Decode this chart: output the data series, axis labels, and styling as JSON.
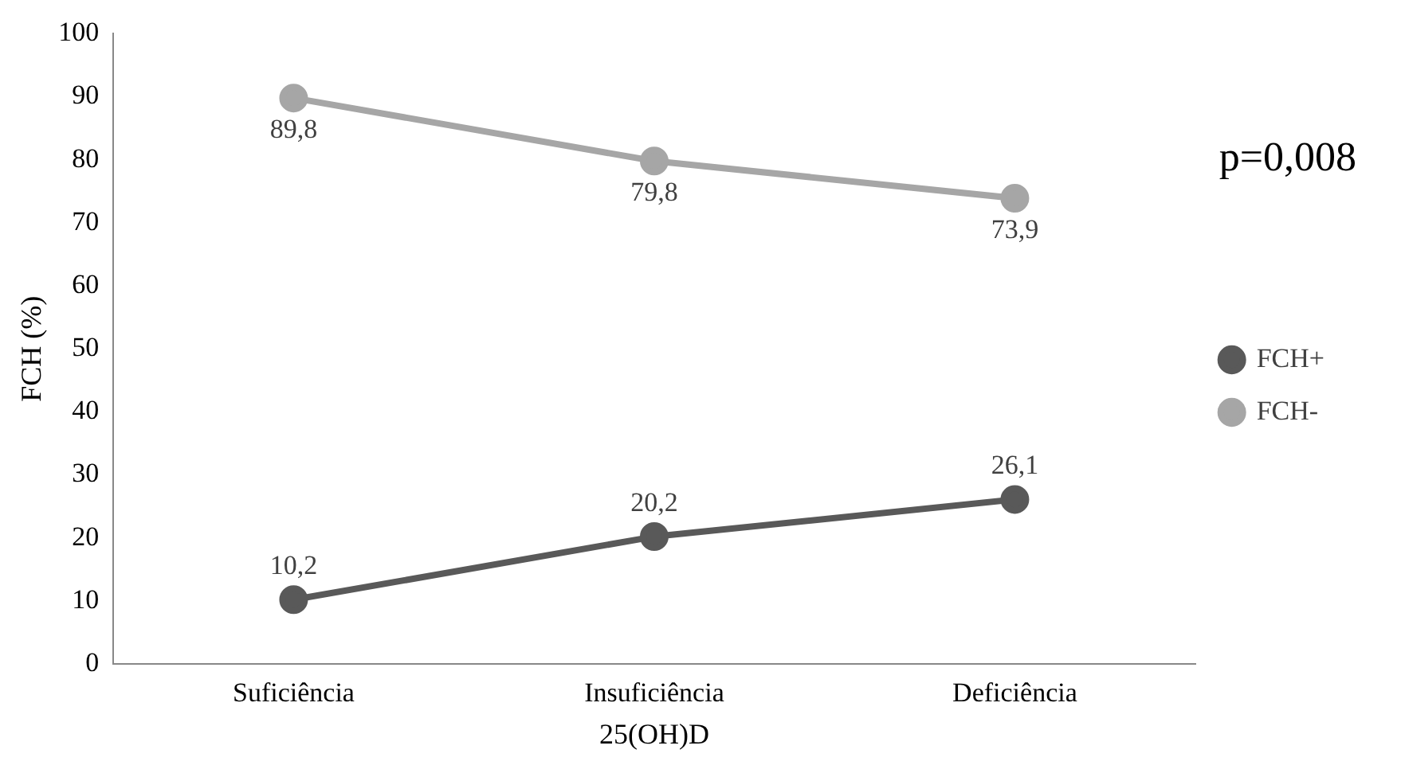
{
  "chart_data": {
    "type": "line",
    "xlabel": "25(OH)D",
    "ylabel": "FCH (%)",
    "categories": [
      "Suficiência",
      "Insuficiência",
      "Deficiência"
    ],
    "series": [
      {
        "name": "FCH+",
        "color": "#595959",
        "values": [
          10.2,
          20.2,
          26.1
        ],
        "value_labels": [
          "10,2",
          "20,2",
          "26,1"
        ]
      },
      {
        "name": "FCH-",
        "color": "#a6a6a6",
        "values": [
          89.8,
          79.8,
          73.9
        ],
        "value_labels": [
          "89,8",
          "79,8",
          "73,9"
        ]
      }
    ],
    "ylim": [
      0,
      100
    ],
    "yticks": [
      0,
      10,
      20,
      30,
      40,
      50,
      60,
      70,
      80,
      90,
      100
    ],
    "grid": false,
    "legend": "right",
    "marker": "circle",
    "line_style": "solid",
    "annotations": [
      "p=0,008"
    ]
  }
}
